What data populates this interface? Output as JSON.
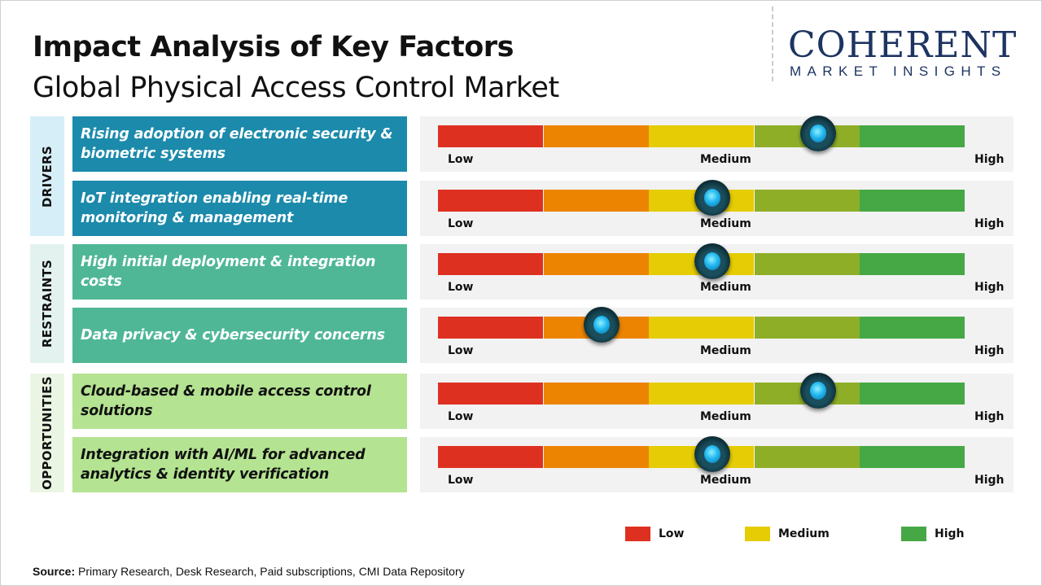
{
  "header": {
    "title": "Impact Analysis of Key Factors",
    "subtitle": "Global Physical Access Control Market"
  },
  "logo": {
    "main": "COHERENT",
    "sub": "MARKET INSIGHTS"
  },
  "colors": {
    "drivers": "#1b8aab",
    "restraints": "#4fb796",
    "opportunities": "#b4e391",
    "segments": [
      "#de3020",
      "#ec8402",
      "#e5cc04",
      "#8fae28",
      "#45a845"
    ]
  },
  "chart_data": {
    "type": "gauge",
    "scale_labels": [
      "Low",
      "Medium",
      "High"
    ],
    "scale_range": [
      0,
      1
    ],
    "categories": [
      {
        "name": "DRIVERS",
        "factors": [
          {
            "label": "Rising adoption of electronic security & biometric systems",
            "value": 0.72
          },
          {
            "label": "IoT integration enabling real-time monitoring & management",
            "value": 0.52
          }
        ]
      },
      {
        "name": "RESTRAINTS",
        "factors": [
          {
            "label": "High initial deployment & integration costs",
            "value": 0.52
          },
          {
            "label": "Data privacy & cybersecurity concerns",
            "value": 0.31
          }
        ]
      },
      {
        "name": "OPPORTUNITIES",
        "factors": [
          {
            "label": "Cloud-based & mobile access control solutions",
            "value": 0.72
          },
          {
            "label": "Integration with AI/ML for advanced analytics & identity verification",
            "value": 0.52
          }
        ]
      }
    ],
    "legend": [
      {
        "label": "Low",
        "color": "#de3020"
      },
      {
        "label": "Medium",
        "color": "#e5cc04"
      },
      {
        "label": "High",
        "color": "#45a845"
      }
    ]
  },
  "footer": {
    "source_label": "Source:",
    "source_text": " Primary Research, Desk Research, Paid subscriptions, CMI Data Repository"
  }
}
